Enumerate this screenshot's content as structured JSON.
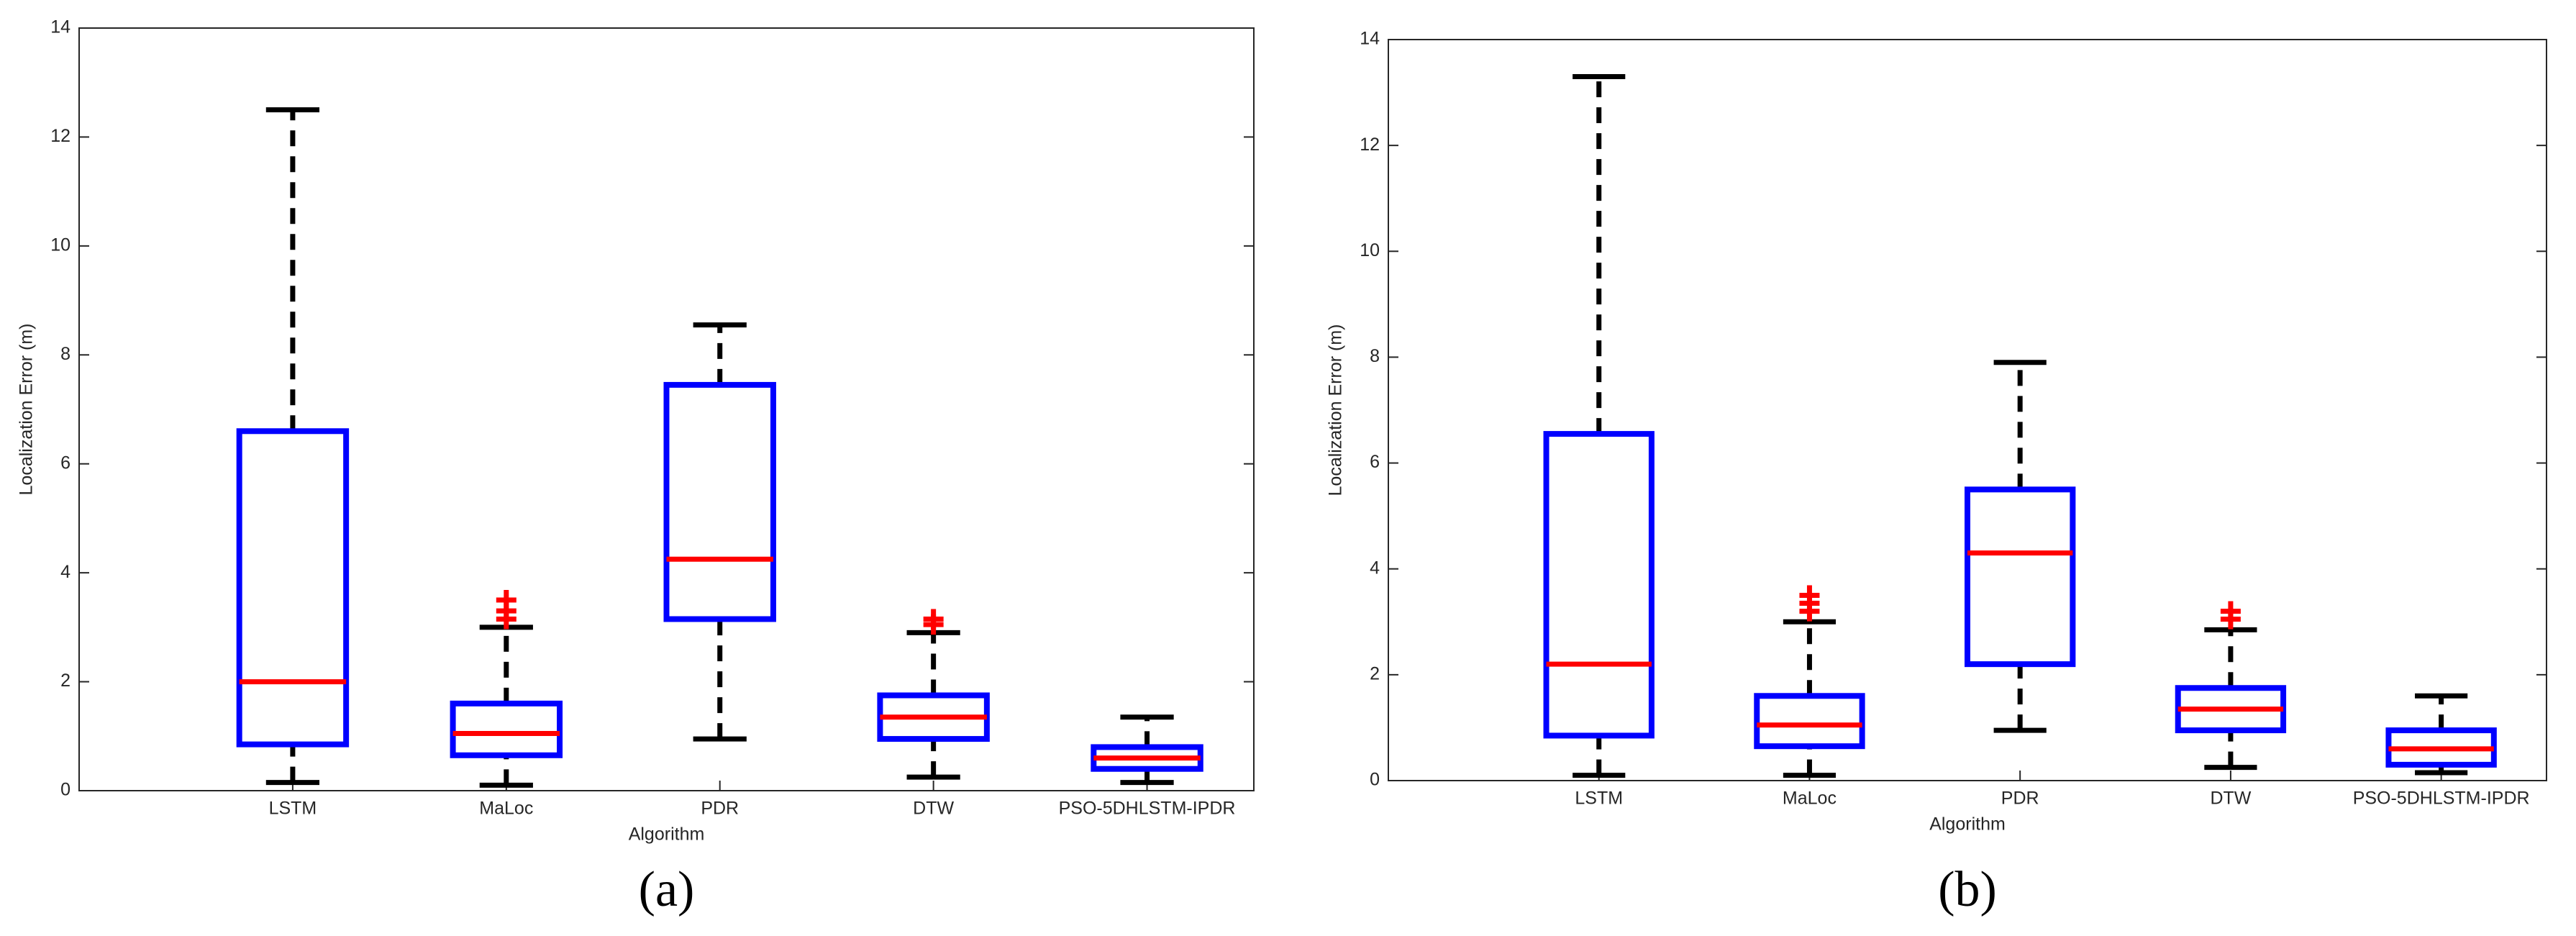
{
  "chart_data": [
    {
      "type": "box",
      "caption": "(a)",
      "x_label": "Algorithm",
      "y_label": "Localization Error (m)",
      "categories": [
        "LSTM",
        "MaLoc",
        "PDR",
        "DTW",
        "PSO-5DHLSTM-IPDR"
      ],
      "box_color": "#0000ff",
      "median_color": "#ff0000",
      "whisker_color": "#000000",
      "outlier_color": "#ff0000",
      "ylim": [
        0,
        14
      ],
      "yticks": [
        0,
        2,
        4,
        6,
        8,
        10,
        12,
        14
      ],
      "boxes": [
        {
          "min": 0.15,
          "q1": 0.85,
          "median": 2.0,
          "q3": 6.6,
          "max": 12.5,
          "outliers": []
        },
        {
          "min": 0.1,
          "q1": 0.65,
          "median": 1.05,
          "q3": 1.6,
          "max": 3.0,
          "outliers": [
            3.15,
            3.3,
            3.5
          ]
        },
        {
          "min": 0.95,
          "q1": 3.15,
          "median": 4.25,
          "q3": 7.45,
          "max": 8.55,
          "outliers": []
        },
        {
          "min": 0.25,
          "q1": 0.95,
          "median": 1.35,
          "q3": 1.75,
          "max": 2.9,
          "outliers": [
            3.05,
            3.15
          ]
        },
        {
          "min": 0.15,
          "q1": 0.4,
          "median": 0.6,
          "q3": 0.8,
          "max": 1.35,
          "outliers": []
        }
      ]
    },
    {
      "type": "box",
      "caption": "(b)",
      "x_label": "Algorithm",
      "y_label": "Localization Error (m)",
      "categories": [
        "LSTM",
        "MaLoc",
        "PDR",
        "DTW",
        "PSO-5DHLSTM-IPDR"
      ],
      "box_color": "#0000ff",
      "median_color": "#ff0000",
      "whisker_color": "#000000",
      "outlier_color": "#ff0000",
      "ylim": [
        0,
        14
      ],
      "yticks": [
        0,
        2,
        4,
        6,
        8,
        10,
        12,
        14
      ],
      "boxes": [
        {
          "min": 0.1,
          "q1": 0.85,
          "median": 2.2,
          "q3": 6.55,
          "max": 13.3,
          "outliers": []
        },
        {
          "min": 0.1,
          "q1": 0.65,
          "median": 1.05,
          "q3": 1.6,
          "max": 3.0,
          "outliers": [
            3.2,
            3.35,
            3.5
          ]
        },
        {
          "min": 0.95,
          "q1": 2.2,
          "median": 4.3,
          "q3": 5.5,
          "max": 7.9,
          "outliers": []
        },
        {
          "min": 0.25,
          "q1": 0.95,
          "median": 1.35,
          "q3": 1.75,
          "max": 2.85,
          "outliers": [
            3.05,
            3.2
          ]
        },
        {
          "min": 0.15,
          "q1": 0.3,
          "median": 0.6,
          "q3": 0.95,
          "max": 1.6,
          "outliers": []
        }
      ]
    }
  ]
}
